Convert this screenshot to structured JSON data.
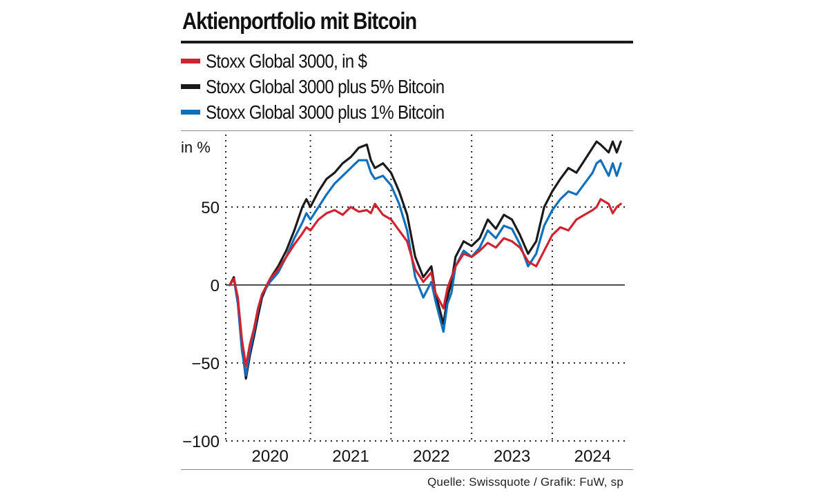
{
  "header": {
    "title": "Aktienportfolio mit Bitcoin"
  },
  "legend": [
    {
      "label": "Stoxx Global 3000, in $",
      "color": "#d0232f"
    },
    {
      "label": "Stoxx Global 3000 plus 5% Bitcoin",
      "color": "#1a1a1a"
    },
    {
      "label": "Stoxx Global 3000 plus 1% Bitcoin",
      "color": "#0e6fbd"
    }
  ],
  "footer": {
    "source": "Quelle: Swissquote / Grafik: FuW, sp"
  },
  "chart_data": {
    "type": "line",
    "title": "Aktienportfolio mit Bitcoin",
    "ylabel": "in %",
    "xlabel": "",
    "ylim": [
      -100,
      90
    ],
    "xlim": [
      2019.95,
      2024.9
    ],
    "yticks": [
      {
        "value": 50,
        "label": "50"
      },
      {
        "value": 0,
        "label": "0"
      },
      {
        "value": -50,
        "label": "−50"
      },
      {
        "value": -100,
        "label": "−100"
      }
    ],
    "xtick_labels": [
      {
        "x": 2020.5,
        "label": "2020"
      },
      {
        "x": 2021.5,
        "label": "2021"
      },
      {
        "x": 2022.5,
        "label": "2022"
      },
      {
        "x": 2023.5,
        "label": "2023"
      },
      {
        "x": 2024.5,
        "label": "2024"
      }
    ],
    "year_gridlines": [
      2021,
      2022,
      2023,
      2024
    ],
    "grid": true,
    "legend_position": "top",
    "series": [
      {
        "name": "Stoxx Global 3000, in $",
        "color": "#d0232f",
        "x": [
          2020.0,
          2020.05,
          2020.1,
          2020.15,
          2020.2,
          2020.25,
          2020.3,
          2020.35,
          2020.4,
          2020.5,
          2020.6,
          2020.7,
          2020.8,
          2020.9,
          2020.95,
          2021.0,
          2021.1,
          2021.2,
          2021.3,
          2021.4,
          2021.5,
          2021.6,
          2021.7,
          2021.75,
          2021.8,
          2021.9,
          2022.0,
          2022.1,
          2022.2,
          2022.3,
          2022.4,
          2022.5,
          2022.55,
          2022.65,
          2022.7,
          2022.75,
          2022.8,
          2022.9,
          2023.0,
          2023.1,
          2023.2,
          2023.3,
          2023.4,
          2023.5,
          2023.6,
          2023.7,
          2023.8,
          2023.9,
          2024.0,
          2024.1,
          2024.2,
          2024.3,
          2024.4,
          2024.5,
          2024.55,
          2024.6,
          2024.7,
          2024.75,
          2024.8,
          2024.85
        ],
        "y": [
          0,
          4,
          -8,
          -35,
          -52,
          -38,
          -28,
          -15,
          -6,
          4,
          10,
          18,
          26,
          33,
          37,
          35,
          42,
          46,
          48,
          45,
          50,
          47,
          48,
          46,
          52,
          45,
          42,
          35,
          28,
          10,
          2,
          8,
          -5,
          -15,
          -2,
          5,
          12,
          20,
          18,
          22,
          27,
          24,
          30,
          28,
          24,
          15,
          12,
          22,
          32,
          37,
          35,
          42,
          45,
          48,
          50,
          55,
          52,
          46,
          50,
          52
        ]
      },
      {
        "name": "Stoxx Global 3000 plus 5% Bitcoin",
        "color": "#1a1a1a",
        "x": [
          2020.0,
          2020.05,
          2020.1,
          2020.15,
          2020.2,
          2020.25,
          2020.3,
          2020.35,
          2020.4,
          2020.5,
          2020.6,
          2020.7,
          2020.8,
          2020.9,
          2020.95,
          2021.0,
          2021.1,
          2021.2,
          2021.3,
          2021.4,
          2021.5,
          2021.6,
          2021.7,
          2021.75,
          2021.8,
          2021.9,
          2022.0,
          2022.1,
          2022.2,
          2022.3,
          2022.4,
          2022.5,
          2022.55,
          2022.65,
          2022.7,
          2022.75,
          2022.8,
          2022.9,
          2023.0,
          2023.1,
          2023.2,
          2023.3,
          2023.4,
          2023.5,
          2023.6,
          2023.7,
          2023.8,
          2023.9,
          2024.0,
          2024.1,
          2024.2,
          2024.3,
          2024.4,
          2024.5,
          2024.55,
          2024.6,
          2024.7,
          2024.75,
          2024.8,
          2024.85
        ],
        "y": [
          0,
          5,
          -10,
          -40,
          -60,
          -45,
          -33,
          -20,
          -8,
          4,
          12,
          22,
          35,
          50,
          55,
          50,
          60,
          68,
          72,
          78,
          82,
          88,
          90,
          80,
          75,
          78,
          72,
          60,
          45,
          18,
          5,
          12,
          -5,
          -25,
          -8,
          2,
          18,
          28,
          25,
          30,
          42,
          36,
          45,
          42,
          32,
          20,
          28,
          50,
          60,
          68,
          75,
          72,
          80,
          88,
          92,
          90,
          85,
          92,
          85,
          92
        ]
      },
      {
        "name": "Stoxx Global 3000 plus 1% Bitcoin",
        "color": "#0e6fbd",
        "x": [
          2020.0,
          2020.05,
          2020.1,
          2020.15,
          2020.2,
          2020.25,
          2020.3,
          2020.35,
          2020.4,
          2020.5,
          2020.6,
          2020.7,
          2020.8,
          2020.9,
          2020.95,
          2021.0,
          2021.1,
          2021.2,
          2021.3,
          2021.4,
          2021.5,
          2021.6,
          2021.7,
          2021.75,
          2021.8,
          2021.9,
          2022.0,
          2022.1,
          2022.2,
          2022.3,
          2022.4,
          2022.5,
          2022.55,
          2022.65,
          2022.7,
          2022.75,
          2022.8,
          2022.9,
          2023.0,
          2023.1,
          2023.2,
          2023.3,
          2023.4,
          2023.5,
          2023.6,
          2023.7,
          2023.8,
          2023.9,
          2024.0,
          2024.1,
          2024.2,
          2024.3,
          2024.4,
          2024.5,
          2024.55,
          2024.6,
          2024.7,
          2024.75,
          2024.8,
          2024.85
        ],
        "y": [
          0,
          4,
          -12,
          -42,
          -58,
          -42,
          -30,
          -16,
          -6,
          2,
          8,
          18,
          30,
          40,
          46,
          42,
          50,
          58,
          65,
          70,
          75,
          80,
          80,
          72,
          68,
          70,
          64,
          52,
          35,
          5,
          -8,
          2,
          -10,
          -30,
          -12,
          -5,
          12,
          22,
          18,
          24,
          35,
          30,
          38,
          36,
          26,
          12,
          20,
          38,
          48,
          55,
          60,
          58,
          65,
          72,
          78,
          80,
          70,
          78,
          70,
          78
        ]
      }
    ]
  }
}
